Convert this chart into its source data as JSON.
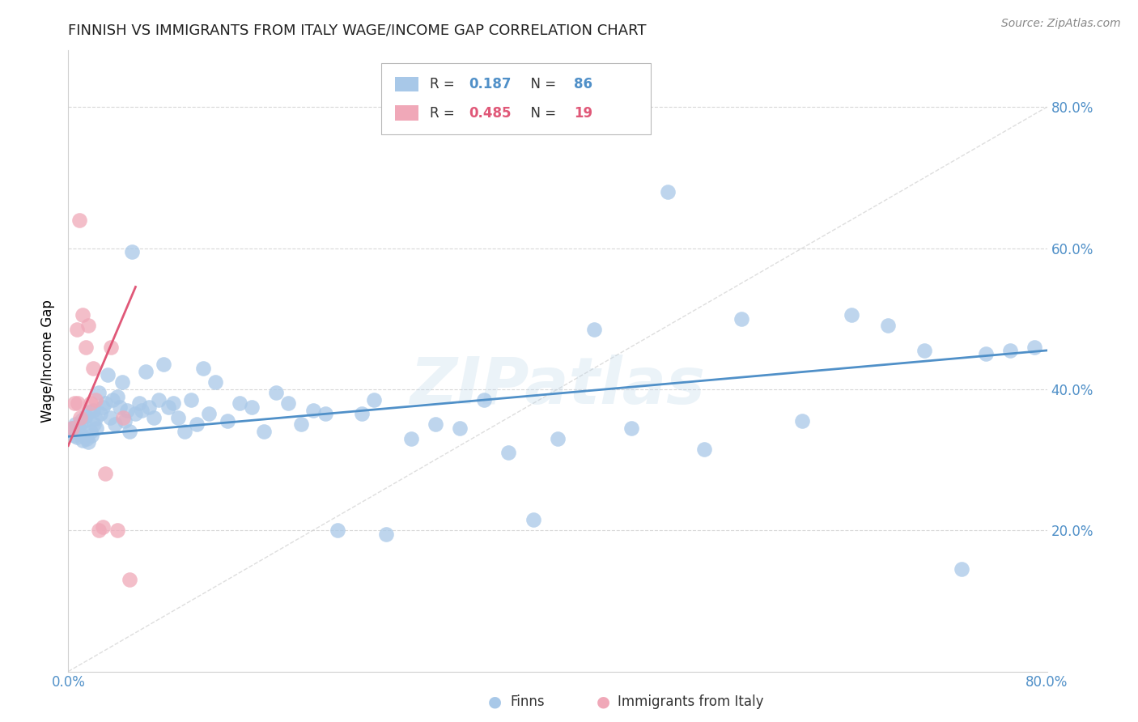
{
  "title": "FINNISH VS IMMIGRANTS FROM ITALY WAGE/INCOME GAP CORRELATION CHART",
  "source": "Source: ZipAtlas.com",
  "ylabel": "Wage/Income Gap",
  "ytick_labels": [
    "80.0%",
    "60.0%",
    "40.0%",
    "20.0%"
  ],
  "ytick_values": [
    0.8,
    0.6,
    0.4,
    0.2
  ],
  "xlim": [
    0.0,
    0.8
  ],
  "ylim": [
    0.0,
    0.88
  ],
  "legend_R1": "0.187",
  "legend_N1": "86",
  "legend_R2": "0.485",
  "legend_N2": "19",
  "watermark": "ZIPatlas",
  "finns_color": "#a8c8e8",
  "immigrants_color": "#f0a8b8",
  "finns_line_color": "#5090c8",
  "immigrants_line_color": "#e05878",
  "diagonal_color": "#d0d0d0",
  "finns_scatter_x": [
    0.003,
    0.004,
    0.005,
    0.006,
    0.007,
    0.008,
    0.009,
    0.01,
    0.011,
    0.012,
    0.013,
    0.014,
    0.015,
    0.016,
    0.017,
    0.018,
    0.019,
    0.02,
    0.021,
    0.022,
    0.023,
    0.025,
    0.026,
    0.028,
    0.03,
    0.032,
    0.034,
    0.036,
    0.038,
    0.04,
    0.042,
    0.044,
    0.046,
    0.048,
    0.05,
    0.052,
    0.055,
    0.058,
    0.06,
    0.063,
    0.066,
    0.07,
    0.074,
    0.078,
    0.082,
    0.086,
    0.09,
    0.095,
    0.1,
    0.105,
    0.11,
    0.115,
    0.12,
    0.13,
    0.14,
    0.15,
    0.16,
    0.17,
    0.18,
    0.19,
    0.2,
    0.21,
    0.22,
    0.24,
    0.25,
    0.26,
    0.28,
    0.3,
    0.32,
    0.34,
    0.36,
    0.38,
    0.4,
    0.43,
    0.46,
    0.49,
    0.52,
    0.55,
    0.6,
    0.64,
    0.67,
    0.7,
    0.73,
    0.75,
    0.77,
    0.79
  ],
  "finns_scatter_y": [
    0.345,
    0.34,
    0.335,
    0.35,
    0.332,
    0.348,
    0.338,
    0.342,
    0.356,
    0.328,
    0.355,
    0.362,
    0.33,
    0.325,
    0.368,
    0.34,
    0.335,
    0.37,
    0.35,
    0.358,
    0.345,
    0.395,
    0.365,
    0.375,
    0.38,
    0.42,
    0.36,
    0.385,
    0.35,
    0.39,
    0.375,
    0.41,
    0.355,
    0.37,
    0.34,
    0.595,
    0.365,
    0.38,
    0.37,
    0.425,
    0.375,
    0.36,
    0.385,
    0.435,
    0.375,
    0.38,
    0.36,
    0.34,
    0.385,
    0.35,
    0.43,
    0.365,
    0.41,
    0.355,
    0.38,
    0.375,
    0.34,
    0.395,
    0.38,
    0.35,
    0.37,
    0.365,
    0.2,
    0.365,
    0.385,
    0.195,
    0.33,
    0.35,
    0.345,
    0.385,
    0.31,
    0.215,
    0.33,
    0.485,
    0.345,
    0.68,
    0.315,
    0.5,
    0.355,
    0.505,
    0.49,
    0.455,
    0.145,
    0.45,
    0.455,
    0.46
  ],
  "immigrants_scatter_x": [
    0.003,
    0.005,
    0.007,
    0.008,
    0.009,
    0.01,
    0.012,
    0.014,
    0.016,
    0.018,
    0.02,
    0.022,
    0.025,
    0.028,
    0.03,
    0.035,
    0.04,
    0.045,
    0.05
  ],
  "immigrants_scatter_y": [
    0.345,
    0.38,
    0.485,
    0.38,
    0.64,
    0.36,
    0.505,
    0.46,
    0.49,
    0.38,
    0.43,
    0.385,
    0.2,
    0.205,
    0.28,
    0.46,
    0.2,
    0.36,
    0.13
  ],
  "finns_line_x": [
    0.0,
    0.8
  ],
  "finns_line_y": [
    0.333,
    0.455
  ],
  "immigrants_line_x": [
    0.0,
    0.055
  ],
  "immigrants_line_y": [
    0.32,
    0.545
  ]
}
